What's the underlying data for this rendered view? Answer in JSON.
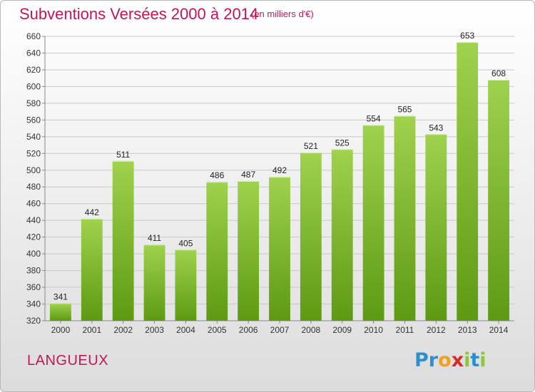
{
  "header": {
    "title": "Subventions Versées 2000 à 2014",
    "subtitle": "(en milliers d'€)"
  },
  "footer": {
    "place": "LANGUEUX",
    "logo_letters": [
      "P",
      "r",
      "o",
      "x",
      "i",
      "t",
      "i"
    ],
    "logo_colors": [
      "#2e8fce",
      "#2e8fce",
      "#f0a01e",
      "#d42b2b",
      "#8cc63f",
      "#2e8fce",
      "#8cc63f"
    ]
  },
  "colors": {
    "bar_top": "#9fd24d",
    "bar_bottom": "#5d9a12",
    "accent": "#c4145a",
    "grid": "#c8c8c8"
  },
  "chart_data": {
    "type": "bar",
    "title": "Subventions Versées 2000 à 2014",
    "subtitle": "(en milliers d'€)",
    "categories": [
      "2000",
      "2001",
      "2002",
      "2003",
      "2004",
      "2005",
      "2006",
      "2007",
      "2008",
      "2009",
      "2010",
      "2011",
      "2012",
      "2013",
      "2014"
    ],
    "values": [
      341,
      442,
      511,
      411,
      405,
      486,
      487,
      492,
      521,
      525,
      554,
      565,
      543,
      653,
      608
    ],
    "ylim": [
      320,
      660
    ],
    "yticks": [
      320,
      340,
      360,
      380,
      400,
      420,
      440,
      460,
      480,
      500,
      520,
      540,
      560,
      580,
      600,
      620,
      640,
      660
    ],
    "grid": true,
    "data_labels": true
  }
}
